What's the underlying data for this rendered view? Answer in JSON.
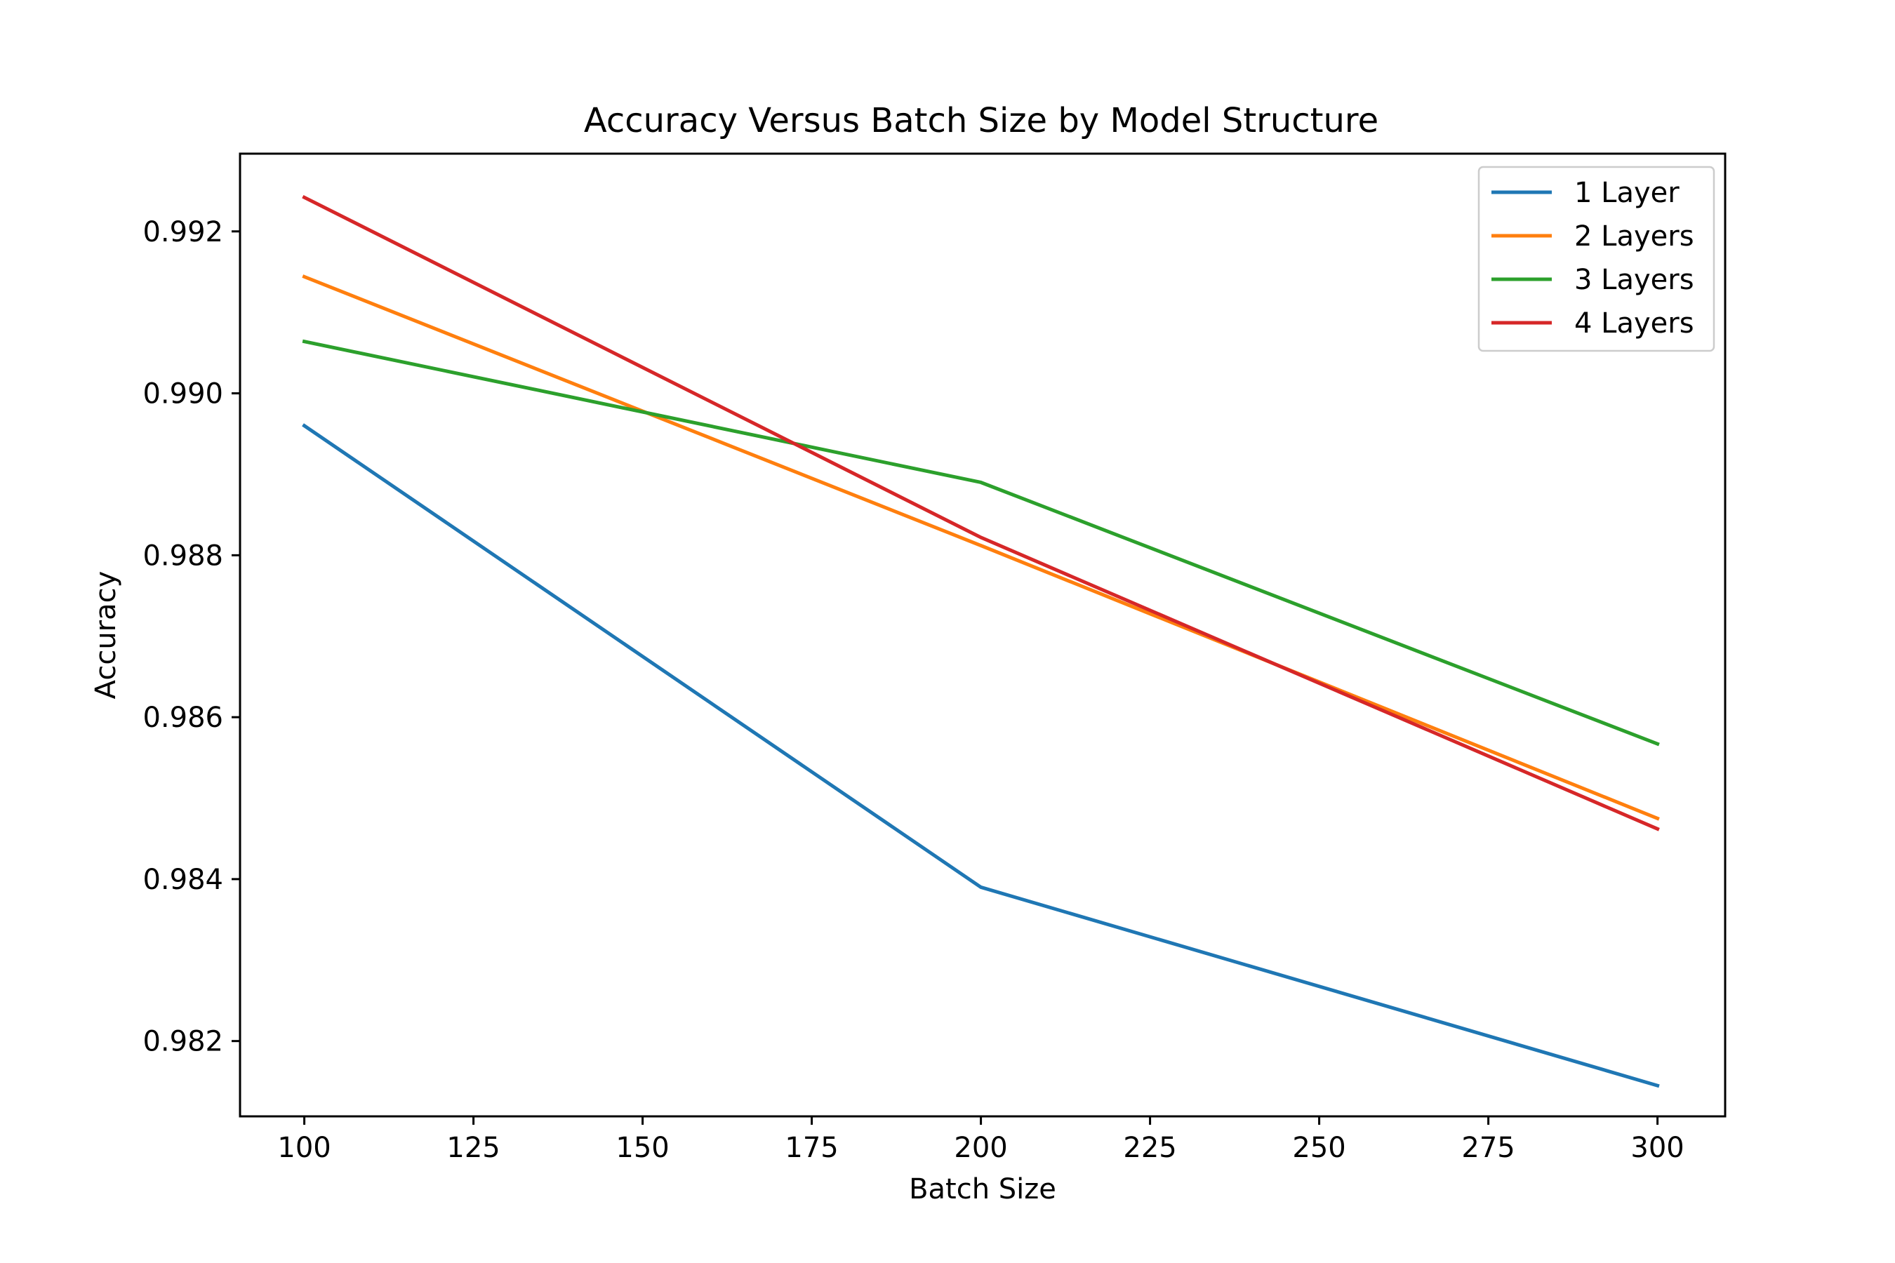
{
  "chart_data": {
    "type": "line",
    "title": "Accuracy Versus Batch Size by Model Structure",
    "xlabel": "Batch Size",
    "ylabel": "Accuracy",
    "x": [
      100,
      200,
      300
    ],
    "xlim": [
      90.5,
      310
    ],
    "ylim": [
      0.98107,
      0.99296
    ],
    "xticks": [
      100,
      125,
      150,
      175,
      200,
      225,
      250,
      275,
      300
    ],
    "yticks": [
      0.982,
      0.984,
      0.986,
      0.988,
      0.99,
      0.992
    ],
    "xtick_labels": [
      "100",
      "125",
      "150",
      "175",
      "200",
      "225",
      "250",
      "275",
      "300"
    ],
    "ytick_labels": [
      "0.982",
      "0.984",
      "0.986",
      "0.988",
      "0.990",
      "0.992"
    ],
    "grid": false,
    "legend_position": "top-right",
    "series": [
      {
        "name": "1 Layer",
        "color": "#1f77b4",
        "values": [
          0.9896,
          0.9839,
          0.98145
        ]
      },
      {
        "name": "2 Layers",
        "color": "#ff7f0e",
        "values": [
          0.99144,
          0.98812,
          0.98475
        ]
      },
      {
        "name": "3 Layers",
        "color": "#2ca02c",
        "values": [
          0.99064,
          0.9889,
          0.98567
        ]
      },
      {
        "name": "4 Layers",
        "color": "#d62728",
        "values": [
          0.99242,
          0.98822,
          0.98462
        ]
      }
    ]
  }
}
